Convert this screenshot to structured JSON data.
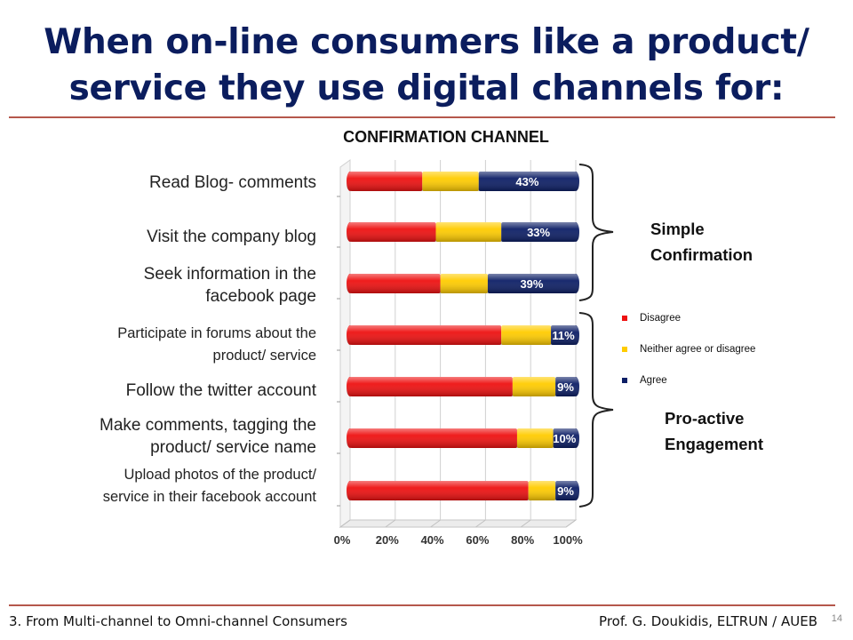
{
  "slide": {
    "title_line1": "When on-line consumers like a product/",
    "title_line2": "service they use digital channels for:",
    "footer_left": "3. From Multi-channel to Omni-channel Consumers",
    "footer_right": "Prof. G. Doukidis, ELTRUN / AUEB",
    "page_number": "14"
  },
  "groups": {
    "simple_line1": "Simple",
    "simple_line2": "Confirmation",
    "proactive_line1": "Pro-active",
    "proactive_line2": "Engagement"
  },
  "chart_data": {
    "type": "bar",
    "orientation": "horizontal",
    "stacked": true,
    "title": "CONFIRMATION CHANNEL",
    "categories": [
      "Read Blog- comments",
      "Visit the company blog",
      "Seek information in the facebook page",
      "Participate in forums about the product/ service",
      "Follow the twitter account",
      "Make comments, tagging the product/ service name",
      "Upload photos of the product/ service in their facebook account"
    ],
    "category_lines": [
      [
        "Read Blog- comments"
      ],
      [
        "Visit the company blog"
      ],
      [
        "Seek information in the",
        "facebook page"
      ],
      [
        "Participate in forums about the",
        "product/ service"
      ],
      [
        "Follow the twitter account"
      ],
      [
        "Make comments, tagging the",
        "product/ service name"
      ],
      [
        "Upload photos of the product/",
        "service in their facebook account"
      ]
    ],
    "series": [
      {
        "name": "Disagree",
        "color": "#ee1111",
        "values": [
          32,
          38,
          40,
          67,
          72,
          74,
          79
        ]
      },
      {
        "name": "Neither agree or disagree",
        "color": "#ffcc00",
        "values": [
          25,
          29,
          21,
          22,
          19,
          16,
          12
        ]
      },
      {
        "name": "Agree",
        "color": "#0d1f66",
        "values": [
          43,
          33,
          39,
          11,
          9,
          10,
          9
        ]
      }
    ],
    "data_labels": [
      "43%",
      "33%",
      "39%",
      "11%",
      "9%",
      "10%",
      "9%"
    ],
    "x_ticks": [
      "0%",
      "20%",
      "40%",
      "60%",
      "80%",
      "100%"
    ],
    "xlim": [
      0,
      100
    ],
    "grid": true,
    "legend_position": "right"
  }
}
